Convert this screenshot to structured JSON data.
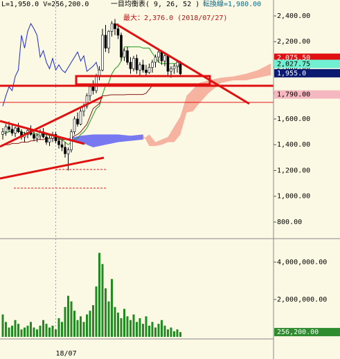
{
  "header": {
    "quote": "L=1,950.0  V=256,200.0",
    "indicator": "一目均衡表( 9, 26, 52 )",
    "conversion": "転換線=1,980.00",
    "max_note": "最大：2,376.0 (2018/07/27)"
  },
  "chart_data": [
    {
      "type": "candlestick",
      "up_color": "#ffffff",
      "down_color": "#000000",
      "categories": [
        null,
        null,
        null,
        null,
        null,
        null,
        null,
        null,
        null,
        null,
        null,
        null,
        null,
        null,
        null,
        null,
        null,
        "18/07",
        null,
        null,
        null,
        null,
        null,
        null,
        null,
        null,
        null,
        null,
        null,
        null,
        null,
        null,
        null,
        null,
        null,
        null,
        null,
        null,
        null,
        null,
        null,
        null,
        null,
        null,
        null,
        null,
        null,
        null,
        null,
        null,
        null,
        null,
        null,
        null,
        null,
        null,
        null,
        null
      ],
      "open": [
        1480,
        1500,
        1540,
        1520,
        1490,
        1530,
        1500,
        1460,
        1480,
        1510,
        1480,
        1450,
        1470,
        1500,
        1460,
        1420,
        1450,
        1480,
        1430,
        1400,
        1380,
        1330,
        1360,
        1500,
        1600,
        1560,
        1660,
        1700,
        1780,
        1850,
        1820,
        1930,
        1980,
        2250,
        2150,
        2280,
        2340,
        2300,
        2250,
        2080,
        2130,
        2040,
        1990,
        2070,
        1980,
        2020,
        1980,
        1960,
        2000,
        2040,
        2080,
        2120,
        2050,
        2090,
        1970,
        1990,
        2010,
        2030
      ],
      "high": [
        1530,
        1560,
        1580,
        1560,
        1540,
        1570,
        1520,
        1500,
        1530,
        1550,
        1510,
        1490,
        1520,
        1530,
        1490,
        1470,
        1500,
        1500,
        1460,
        1440,
        1420,
        1380,
        1520,
        1620,
        1650,
        1680,
        1720,
        1800,
        1860,
        1900,
        1950,
        2010,
        2300,
        2330,
        2290,
        2360,
        2376,
        2340,
        2270,
        2150,
        2160,
        2080,
        2090,
        2100,
        2040,
        2060,
        2020,
        2030,
        2060,
        2100,
        2140,
        2130,
        2110,
        2100,
        2010,
        2030,
        2060,
        2050
      ],
      "low": [
        1440,
        1470,
        1500,
        1470,
        1460,
        1490,
        1440,
        1420,
        1450,
        1470,
        1430,
        1420,
        1440,
        1450,
        1400,
        1390,
        1420,
        1410,
        1370,
        1350,
        1300,
        1200,
        1340,
        1480,
        1540,
        1550,
        1620,
        1680,
        1740,
        1790,
        1800,
        1900,
        1970,
        2120,
        2110,
        2240,
        2250,
        2220,
        2050,
        2050,
        2020,
        1950,
        1970,
        1950,
        1940,
        1960,
        1930,
        1950,
        1960,
        2000,
        2040,
        2020,
        2010,
        1940,
        1920,
        1950,
        1960,
        1940
      ],
      "close": [
        1500,
        1540,
        1520,
        1490,
        1530,
        1500,
        1460,
        1480,
        1510,
        1480,
        1450,
        1470,
        1500,
        1460,
        1420,
        1450,
        1480,
        1430,
        1400,
        1380,
        1330,
        1360,
        1500,
        1600,
        1560,
        1660,
        1700,
        1780,
        1850,
        1820,
        1930,
        1980,
        2250,
        2150,
        2280,
        2340,
        2300,
        2250,
        2080,
        2130,
        2040,
        1990,
        2070,
        1980,
        2020,
        1980,
        1960,
        2000,
        2040,
        2080,
        2120,
        2050,
        2090,
        1970,
        1990,
        2010,
        2040,
        1950
      ],
      "lines": [
        {
          "color": "#1a9a1a",
          "values": [
            1490,
            1490,
            1500,
            1510,
            1510,
            1510,
            1500,
            1490,
            1490,
            1490,
            1490,
            1480,
            1480,
            1480,
            1480,
            1470,
            1470,
            1460,
            1450,
            1440,
            1420,
            1400,
            1420,
            1440,
            1450,
            1480,
            1500,
            1530,
            1580,
            1630,
            1680,
            1700,
            1790,
            1860,
            1880,
            1950,
            1990,
            2010,
            2050,
            2160,
            2160,
            2160,
            2160,
            2160,
            2160,
            2150,
            2150,
            2150,
            2110,
            2080,
            2040,
            2030,
            2030,
            2030,
            2030,
            2030,
            2030,
            1980
          ]
        },
        {
          "color": "#8b1a1a",
          "values": [
            1400,
            1400,
            1400,
            1410,
            1410,
            1410,
            1420,
            1420,
            1420,
            1430,
            1430,
            1440,
            1440,
            1440,
            1450,
            1450,
            1450,
            1450,
            1440,
            1440,
            1440,
            1440,
            1450,
            1470,
            1480,
            1500,
            1530,
            1560,
            1620,
            1680,
            1700,
            1720,
            1780,
            1780,
            1785,
            1788,
            1788,
            1788,
            1788,
            1788,
            1790,
            1790,
            1790,
            1790,
            1790,
            1790,
            1800,
            1830,
            1860,
            1870,
            1870,
            1870,
            1870,
            1870,
            1870,
            1870,
            1870,
            1870
          ]
        },
        {
          "color": "#1a2ad0",
          "values": [
            1700,
            1780,
            1850,
            1820,
            1930,
            1980,
            2250,
            2150,
            2280,
            2340,
            2300,
            2250,
            2080,
            2130,
            2040,
            1990,
            2070,
            1980,
            2020,
            1980,
            1960,
            2000,
            2040,
            2080,
            2120,
            2050,
            2090,
            1970,
            1990,
            2010,
            2040,
            1950,
            null,
            null,
            null,
            null,
            null,
            null,
            null,
            null,
            null,
            null,
            null,
            null,
            null,
            null,
            null,
            null,
            null,
            null,
            null,
            null,
            null,
            null,
            null,
            null,
            null,
            null
          ]
        }
      ],
      "cloud": {
        "x": [
          21,
          25,
          29,
          33,
          37,
          41,
          45,
          47,
          49,
          51,
          53,
          55,
          57,
          59,
          61,
          63,
          66,
          70,
          74,
          78,
          82,
          86
        ],
        "span_a": [
          1440,
          1420,
          1380,
          1400,
          1420,
          1430,
          1440,
          1480,
          1420,
          1440,
          1460,
          1540,
          1620,
          1780,
          1830,
          1880,
          1900,
          1920,
          1930,
          1950,
          1980,
          2030
        ],
        "span_b": [
          1450,
          1470,
          1480,
          1480,
          1480,
          1470,
          1480,
          1390,
          1390,
          1400,
          1420,
          1420,
          1480,
          1650,
          1660,
          1720,
          1800,
          1880,
          1900,
          1900,
          1920,
          1940
        ],
        "colors": [
          "#f6b3a0",
          "#7878f0"
        ]
      },
      "ylim": [
        671,
        2523.5
      ],
      "yticks": [
        {
          "value": 800,
          "label": "800.00"
        },
        {
          "value": 1000,
          "label": "1,000.00"
        },
        {
          "value": 1200,
          "label": "1,200.00"
        },
        {
          "value": 1400,
          "label": "1,400.00"
        },
        {
          "value": 1600,
          "label": "1,600.00"
        },
        {
          "value": 1800,
          "label": "1,800.00"
        },
        {
          "value": 2000,
          "label": "2,000.00"
        },
        {
          "value": 2200,
          "label": "2,200.00"
        },
        {
          "value": 2400,
          "label": "2,400.00"
        }
      ],
      "price_tags": [
        {
          "value": 2075.5,
          "label": "2,075.50",
          "color": "#e01010",
          "text_color": "#ffffff"
        },
        {
          "value": 2027.75,
          "label": "2,027.75",
          "color": "#70f0d0",
          "text_color": "#000000"
        },
        {
          "value": 1955,
          "label": "1,955.0",
          "color": "#0a1a70",
          "text_color": "#ffffff"
        },
        {
          "value": 1790,
          "label": "1,790.00",
          "color": "#f6b8c0",
          "text_color": "#000000"
        }
      ]
    },
    {
      "type": "bar",
      "color": "#1e8c1e",
      "values": [
        1200000,
        800000,
        500000,
        600000,
        900000,
        700000,
        400000,
        500000,
        600000,
        800000,
        500000,
        400000,
        600000,
        900000,
        700000,
        500000,
        600000,
        400000,
        1000000,
        800000,
        1600000,
        2200000,
        1900000,
        1400000,
        900000,
        1100000,
        800000,
        1200000,
        1400000,
        1700000,
        2700000,
        4500000,
        3900000,
        2600000,
        1900000,
        3100000,
        1600000,
        1300000,
        1000000,
        1500000,
        1100000,
        900000,
        1200000,
        800000,
        1000000,
        700000,
        1100000,
        600000,
        800000,
        500000,
        700000,
        900000,
        600000,
        400000,
        500000,
        300000,
        400000,
        256200
      ],
      "ylim": [
        0,
        5260000
      ],
      "yticks": [
        {
          "value": 2000000,
          "label": "2,000,000.00"
        },
        {
          "value": 4000000,
          "label": "4,000,000.00"
        }
      ],
      "price_tags": [
        {
          "value": 256200,
          "label": "256,200.00",
          "color": "#2e8b2e",
          "text_color": "#ffffff"
        }
      ]
    }
  ]
}
